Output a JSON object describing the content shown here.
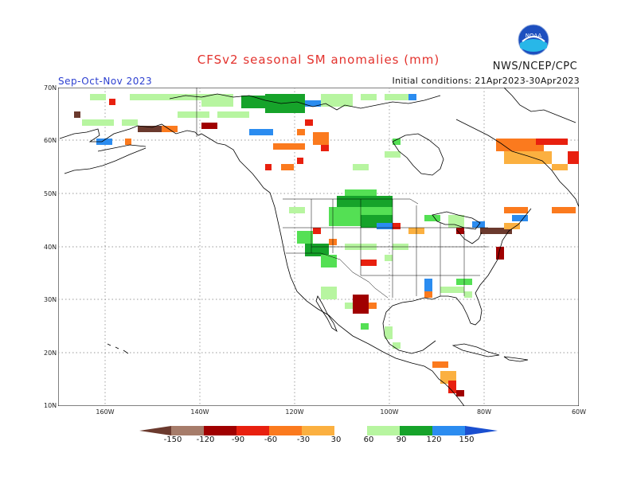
{
  "header": {
    "title": "CFSv2 seasonal SM anomalies (mm)",
    "agency": "NWS/NCEP/CPC",
    "season": "Sep-Oct-Nov 2023",
    "initial_conditions": "Initial conditions: 21Apr2023-30Apr2023",
    "logo_text": "NOAA"
  },
  "map": {
    "lat_labels": [
      "70N",
      "60N",
      "50N",
      "40N",
      "30N",
      "20N",
      "10N"
    ],
    "lon_labels": [
      "160W",
      "140W",
      "120W",
      "100W",
      "80W",
      "60W"
    ]
  },
  "colorbar": {
    "labels": [
      "-150",
      "-120",
      "-90",
      "-60",
      "-30",
      "30",
      "60",
      "90",
      "120",
      "150"
    ],
    "colors": {
      "below_150": "#6b3a2e",
      "m150_m120": "#a67c6a",
      "m120_m90": "#a00000",
      "m90_m60": "#e8200f",
      "m60_m30": "#fb7a1e",
      "m30_0": "#fbb040",
      "neutral": "#ffffff",
      "p30_p60": "#b7f5a0",
      "p60_p90": "#54e054",
      "p90_p120": "#16a32a",
      "p120_p150": "#2b8cf0",
      "above_150": "#1a4fd0"
    }
  }
}
